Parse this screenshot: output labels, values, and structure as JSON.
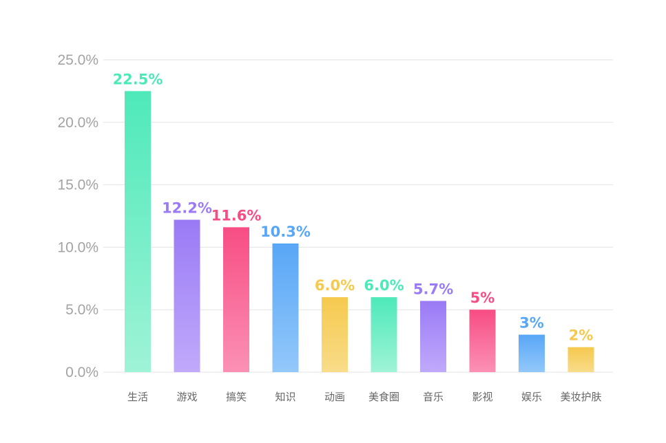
{
  "chart_data": {
    "type": "bar",
    "categories": [
      "生活",
      "游戏",
      "搞笑",
      "知识",
      "动画",
      "美食圈",
      "音乐",
      "影视",
      "娱乐",
      "美妆护肤"
    ],
    "values": [
      22.5,
      12.2,
      11.6,
      10.3,
      6.0,
      6.0,
      5.7,
      5,
      3,
      2
    ],
    "data_labels": [
      "22.5%",
      "12.2%",
      "11.6%",
      "10.3%",
      "6.0%",
      "6.0%",
      "5.7%",
      "5%",
      "3%",
      "2%"
    ],
    "title": "",
    "xlabel": "",
    "ylabel": "",
    "ylim": [
      0,
      25
    ],
    "yticks": [
      0,
      5,
      10,
      15,
      20,
      25
    ],
    "ytick_labels": [
      "0.0%",
      "5.0%",
      "10.0%",
      "15.0%",
      "20.0%",
      "25.0%"
    ],
    "grid": true,
    "legend": "none",
    "colors": [
      [
        "#4ee9b9",
        "#9ff3d6"
      ],
      [
        "#9a7af5",
        "#c0aafb"
      ],
      [
        "#f74d84",
        "#fb91b5"
      ],
      [
        "#58a6f6",
        "#93c8fa"
      ],
      [
        "#f6c94e",
        "#f8dc8a"
      ],
      [
        "#4ee9b9",
        "#9ff3d6"
      ],
      [
        "#9a7af5",
        "#c0aafb"
      ],
      [
        "#f74d84",
        "#fb91b5"
      ],
      [
        "#58a6f6",
        "#93c8fa"
      ],
      [
        "#f6c94e",
        "#f8dc8a"
      ]
    ]
  }
}
